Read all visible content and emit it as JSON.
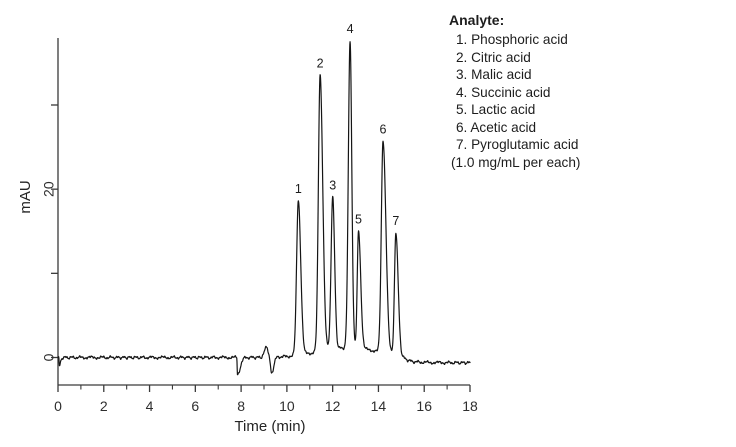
{
  "chart_data": {
    "type": "line",
    "title": "",
    "xlabel": "Time (min)",
    "ylabel": "mAU",
    "xlim": [
      0,
      18
    ],
    "ylim_mau": [
      -3,
      38.3
    ],
    "grid": false,
    "legend_position": "top-right",
    "x_major_ticks": [
      0,
      2,
      4,
      6,
      8,
      10,
      12,
      14,
      16,
      18
    ],
    "x_minor_ticks": [
      1,
      3,
      5,
      7,
      9,
      11,
      13,
      15,
      17
    ],
    "y_ticks": [
      {
        "value": 0,
        "label": "0"
      },
      {
        "value": 10,
        "label": ""
      },
      {
        "value": 20,
        "label": "20"
      },
      {
        "value": 30,
        "label": ""
      }
    ],
    "peaks": [
      {
        "number": 1,
        "analyte": "Phosphoric acid",
        "retention_time_min": 10.5,
        "height_mau": 18.7,
        "sigma_left_min": 0.075,
        "sigma_right_min": 0.105
      },
      {
        "number": 2,
        "analyte": "Citric acid",
        "retention_time_min": 11.45,
        "height_mau": 33.6,
        "sigma_left_min": 0.075,
        "sigma_right_min": 0.115
      },
      {
        "number": 3,
        "analyte": "Malic acid",
        "retention_time_min": 12.0,
        "height_mau": 19.1,
        "sigma_left_min": 0.07,
        "sigma_right_min": 0.085
      },
      {
        "number": 4,
        "analyte": "Succinic acid",
        "retention_time_min": 12.76,
        "height_mau": 37.7,
        "sigma_left_min": 0.075,
        "sigma_right_min": 0.075
      },
      {
        "number": 5,
        "analyte": "Lactic acid",
        "retention_time_min": 13.13,
        "height_mau": 15.1,
        "sigma_left_min": 0.055,
        "sigma_right_min": 0.095
      },
      {
        "number": 6,
        "analyte": "Acetic acid",
        "retention_time_min": 14.2,
        "height_mau": 25.8,
        "sigma_left_min": 0.075,
        "sigma_right_min": 0.125
      },
      {
        "number": 7,
        "analyte": "Pyroglutamic acid",
        "retention_time_min": 14.76,
        "height_mau": 14.9,
        "sigma_left_min": 0.06,
        "sigma_right_min": 0.1
      }
    ],
    "baseline": {
      "noise_mau": 0.11,
      "cluster_swell": {
        "center_min": 12.7,
        "amplitude_mau": 1.15,
        "sigma_min": 1.3
      },
      "post_run_offset": {
        "level_mau": -0.62,
        "onset_min": 15.15,
        "transition_min": 0.12
      },
      "artifacts": [
        {
          "time_min": 0.06,
          "amplitude_mau": -1.0,
          "sigma_left_min": 0.012,
          "sigma_right_min": 0.05
        },
        {
          "time_min": 7.84,
          "amplitude_mau": -2.0,
          "sigma_left_min": 0.012,
          "sigma_right_min": 0.12
        },
        {
          "time_min": 9.12,
          "amplitude_mau": 1.35,
          "sigma_left_min": 0.09,
          "sigma_right_min": 0.05
        },
        {
          "time_min": 9.33,
          "amplitude_mau": -1.9,
          "sigma_left_min": 0.045,
          "sigma_right_min": 0.09
        }
      ]
    }
  },
  "legend": {
    "title": "Analyte:",
    "items": [
      "1. Phosphoric acid",
      "2. Citric acid",
      "3. Malic acid",
      "4. Succinic acid",
      "5. Lactic acid",
      "6. Acetic acid",
      "7. Pyroglutamic acid"
    ],
    "note": "(1.0 mg/mL per each)"
  },
  "colors": {
    "trace": "#151515",
    "axis": "#3a3a3a",
    "text": "#2e2e2e"
  }
}
